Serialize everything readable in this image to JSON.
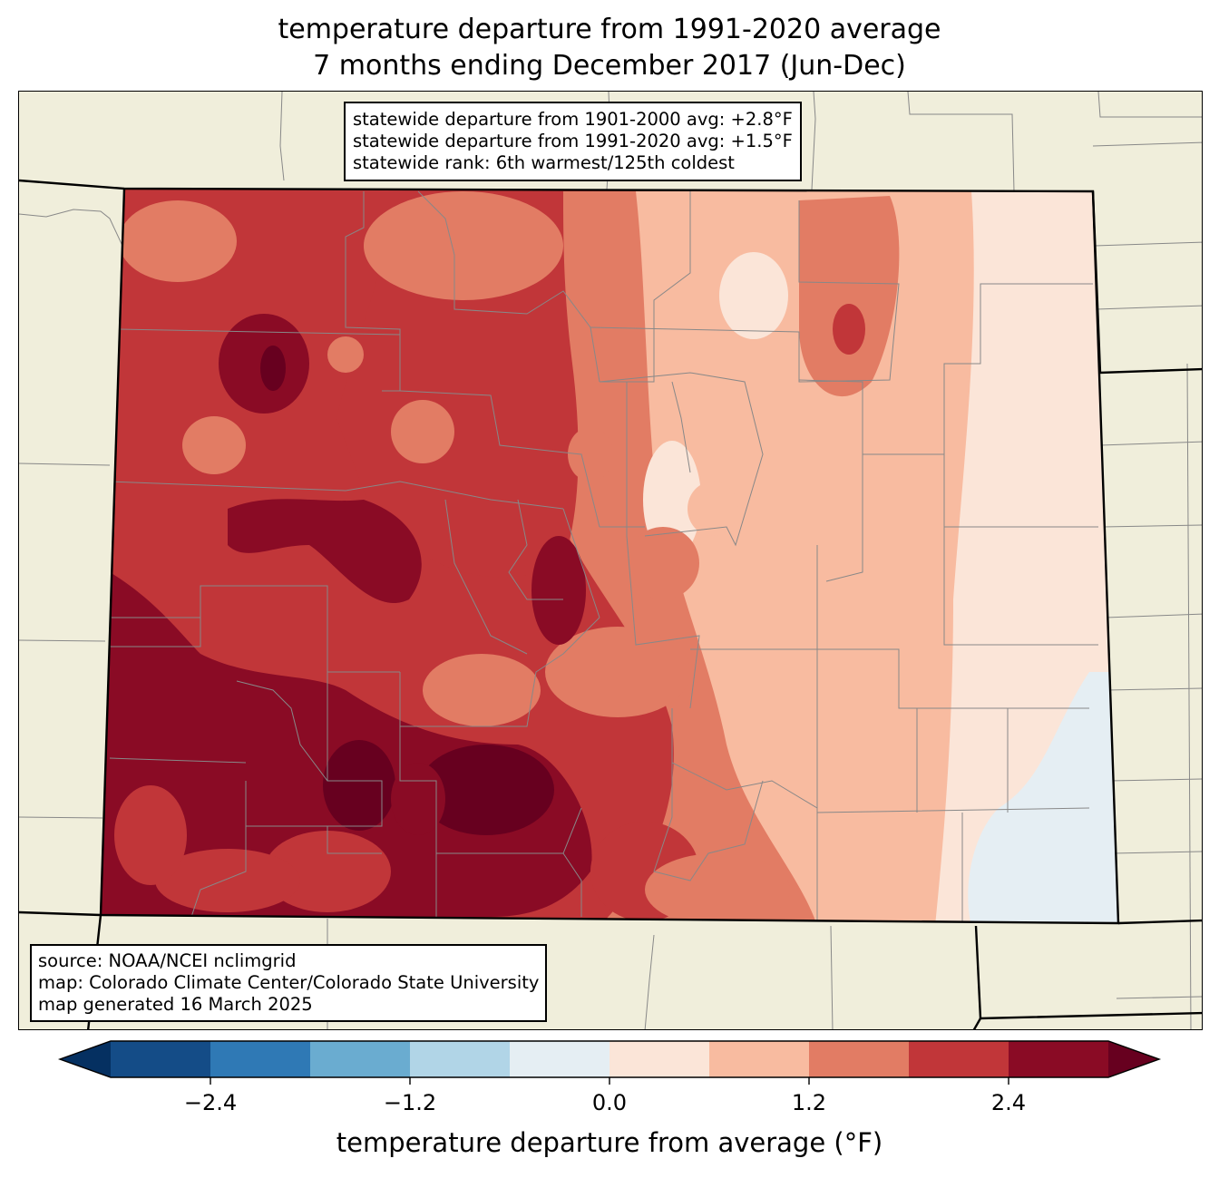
{
  "title": {
    "line1": "temperature departure from 1991-2020 average",
    "line2": "7 months ending December 2017 (Jun-Dec)"
  },
  "stats_box": {
    "line1": "statewide departure from 1901-2000 avg: +2.8°F",
    "line2": "statewide departure from 1991-2020 avg: +1.5°F",
    "line3": "statewide rank: 6th warmest/125th coldest"
  },
  "credits_box": {
    "line1": "source: NOAA/NCEI nclimgrid",
    "line2": "map: Colorado Climate Center/Colorado State University",
    "line3": "map generated 16 March 2025"
  },
  "colorbar": {
    "label": "temperature departure from average (°F)",
    "ticks": [
      {
        "value": -2.4,
        "label": "−2.4"
      },
      {
        "value": -1.2,
        "label": "−1.2"
      },
      {
        "value": 0.0,
        "label": "0.0"
      },
      {
        "value": 1.2,
        "label": "1.2"
      },
      {
        "value": 2.4,
        "label": "2.4"
      }
    ],
    "range": [
      -3.0,
      3.0
    ],
    "step": 0.6,
    "under_color": "#053061",
    "over_color": "#67001f",
    "colors": [
      "#144c87",
      "#2f79b5",
      "#6aacd0",
      "#b1d5e7",
      "#e5eef3",
      "#fbe5d8",
      "#f8bba0",
      "#e27c64",
      "#c13639",
      "#8a0b25"
    ]
  },
  "map_colors": {
    "background": "#f0eedb",
    "county_lines": "#888888",
    "state_lines": "#000000"
  }
}
